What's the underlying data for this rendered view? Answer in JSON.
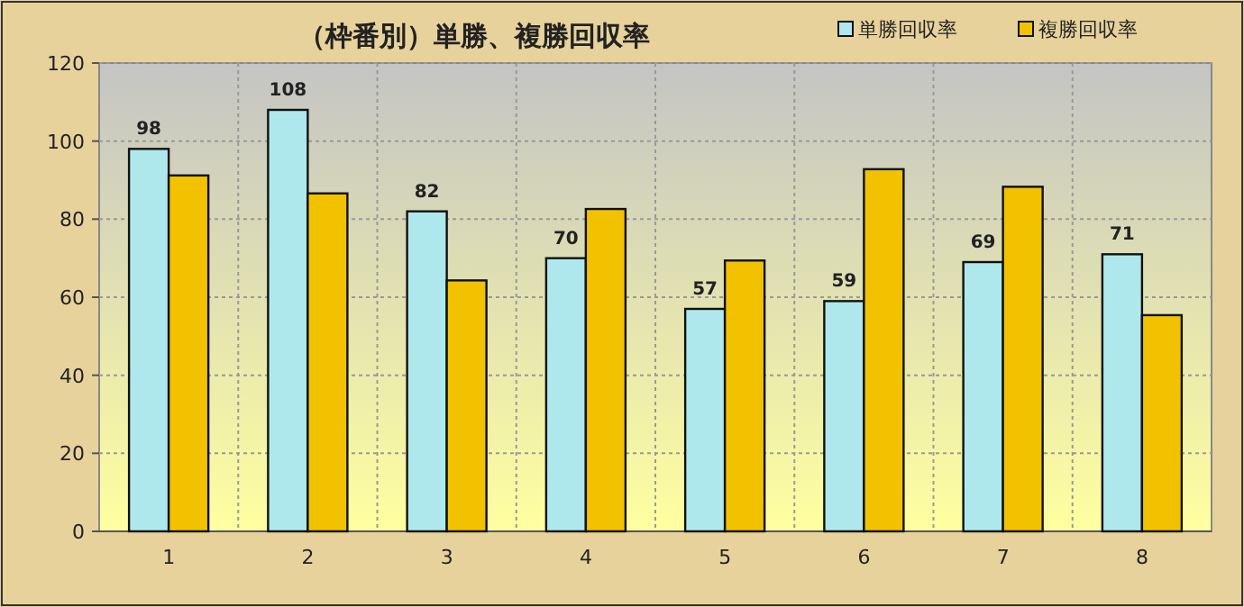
{
  "chart_data": {
    "type": "bar",
    "title": "（枠番別）単勝、複勝回収率",
    "categories": [
      "1",
      "2",
      "3",
      "4",
      "5",
      "6",
      "7",
      "8"
    ],
    "series": [
      {
        "name": "単勝回収率",
        "color": "#aee8ec",
        "values": [
          98,
          108,
          82,
          70,
          57,
          59,
          69,
          71
        ],
        "value_labels": [
          "98",
          "108",
          "82",
          "70",
          "57",
          "59",
          "69",
          "71"
        ]
      },
      {
        "name": "複勝回収率",
        "color": "#f2c200",
        "values": [
          91.2,
          86.6,
          64.3,
          82.6,
          69.4,
          92.8,
          88.3,
          55.4
        ]
      }
    ],
    "ylim": [
      0,
      120
    ],
    "yticks": [
      0,
      20,
      40,
      60,
      80,
      100,
      120
    ],
    "grid": true,
    "legend": "top right"
  }
}
